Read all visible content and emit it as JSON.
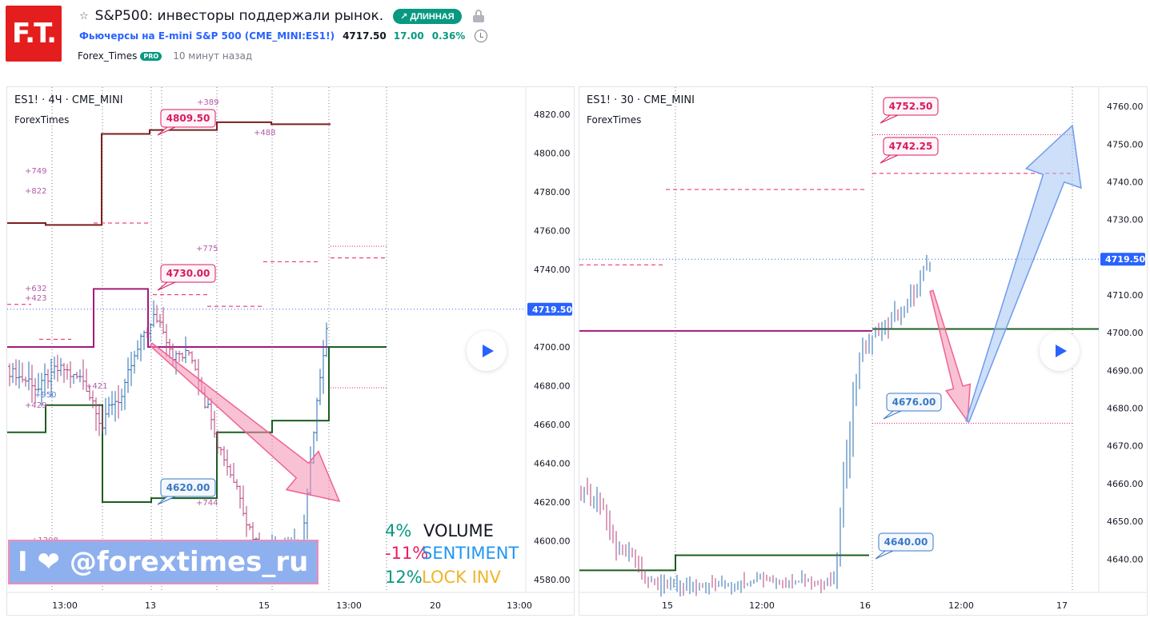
{
  "header": {
    "logo_text": "F.T.",
    "star": "☆",
    "idea_title": "S&P500: инвесторы поддержали рынок.",
    "direction_badge": "↗ ДЛИННАЯ",
    "lock_icon": "lock-icon",
    "symbol_name": "Фьючерсы на E-mini S&P 500 (CME_MINI:ES1!)",
    "price": "4717.50",
    "change": "17.00",
    "change_pct": "0.36%",
    "alarm_icon": "alarm-clock-icon",
    "author": "Forex_Times",
    "author_badge": "PRO",
    "time_ago": "10 минут назад"
  },
  "colors": {
    "accent_blue": "#2962ff",
    "long_green": "#089981",
    "pink": "#e91e63",
    "dark_red": "#7b1e1e",
    "magenta": "#a31a7c",
    "dark_green": "#1b5e20",
    "price_label": "#2962ff"
  },
  "overlay": {
    "watermark": "I ❤ @forextimes_ru",
    "rows": [
      {
        "pct": "4%",
        "label": "VOLUME",
        "pct_color": "#089981",
        "label_color": "#131722"
      },
      {
        "pct": "-11%",
        "label": "SENTIMENT",
        "pct_color": "#e91e63",
        "label_color": "#2196f3"
      },
      {
        "pct": "12%",
        "label": "LOCK INV",
        "pct_color": "#089981",
        "label_color": "#f0b429"
      }
    ]
  },
  "chart_data": [
    {
      "type": "line",
      "legend": "ES1! · 4Ч · CME_MINI",
      "author": "ForexTimes",
      "current_price": "4719.50",
      "ylim": [
        4575,
        4830
      ],
      "y_ticks": [
        "4820.00",
        "4800.00",
        "4780.00",
        "4760.00",
        "4740.00",
        "4720.00",
        "4700.00",
        "4680.00",
        "4660.00",
        "4640.00",
        "4620.00",
        "4600.00",
        "4580.00"
      ],
      "x_ticks": [
        "13:00",
        "13",
        "15",
        "13:00",
        "20",
        "13:00"
      ],
      "price_labels": [
        {
          "text": "4809.50",
          "value": 4809.5
        },
        {
          "text": "4730.00",
          "value": 4730.0
        },
        {
          "text": "4620.00",
          "value": 4620.0
        }
      ],
      "level_labels": [
        "+389",
        "+488",
        "+749",
        "+822",
        "+775",
        "+632",
        "+423",
        "+950",
        "+421",
        "+429",
        "+744",
        "+1208"
      ],
      "series": [
        {
          "name": "",
          "color": "#7b1e1e",
          "steps": [
            [
              0,
              4764
            ],
            [
              0.14,
              4763
            ],
            [
              0.31,
              4810
            ],
            [
              0.62,
              4816
            ],
            [
              0.86,
              4814
            ]
          ]
        },
        {
          "name": "",
          "color": "#a31a7c",
          "steps": [
            [
              0,
              4700
            ],
            [
              0.15,
              4700
            ],
            [
              0.26,
              4730
            ],
            [
              0.31,
              4700
            ],
            [
              0.86,
              4700
            ]
          ]
        },
        {
          "name": "",
          "color": "#1b5e20",
          "steps": [
            [
              0,
              4655
            ],
            [
              0.08,
              4670
            ],
            [
              0.21,
              4620
            ],
            [
              0.33,
              4655
            ],
            [
              0.71,
              4662
            ],
            [
              0.86,
              4700
            ]
          ]
        }
      ],
      "arrow": {
        "color": "pink",
        "from": 4705,
        "to": 4617
      }
    },
    {
      "type": "line",
      "legend": "ES1! · 30 · CME_MINI",
      "author": "ForexTimes",
      "current_price": "4719.50",
      "ylim": [
        4632,
        4763
      ],
      "y_ticks": [
        "4760.00",
        "4750.00",
        "4740.00",
        "4730.00",
        "4720.00",
        "4710.00",
        "4700.00",
        "4690.00",
        "4680.00",
        "4670.00",
        "4660.00",
        "4650.00",
        "4640.00"
      ],
      "x_ticks": [
        "15",
        "12:00",
        "16",
        "12:00",
        "17"
      ],
      "price_labels": [
        {
          "text": "4752.50",
          "value": 4752.5
        },
        {
          "text": "4742.25",
          "value": 4742.25
        },
        {
          "text": "4676.00",
          "value": 4676.0
        },
        {
          "text": "4640.00",
          "value": 4640.0
        }
      ],
      "series": [
        {
          "name": "",
          "color": "#a31a7c",
          "level": 4700.5
        },
        {
          "name": "",
          "color": "#1b5e20",
          "level": 4701
        },
        {
          "name": "",
          "color": "#1b5e20",
          "level": 4641
        }
      ],
      "arrows": [
        {
          "color": "pink",
          "from": 4710,
          "to": 4676
        },
        {
          "color": "blue",
          "from": 4676,
          "to": 4752.5
        }
      ]
    }
  ]
}
